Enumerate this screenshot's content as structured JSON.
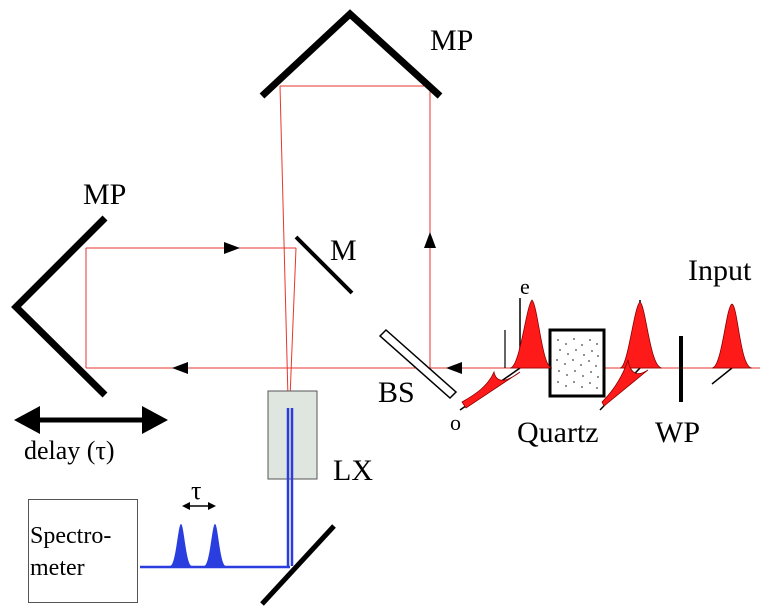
{
  "labels": {
    "mp_top": "MP",
    "mp_left": "MP",
    "mirror": "M",
    "input": "Input",
    "beam_splitter": "BS",
    "quartz": "Quartz",
    "wave_plate": "WP",
    "crystal": "LX",
    "delay": "delay (τ)",
    "tau": "τ",
    "e_axis": "e",
    "o_axis": "o",
    "spectrometer": "Spectro-\nmeter"
  },
  "colors": {
    "beam_red": "#e8362c",
    "pulse_red": "#ff1a1a",
    "pulse_blue": "#2a3ee0",
    "crystal_fill": "#dfe5df",
    "ink": "#000000"
  }
}
